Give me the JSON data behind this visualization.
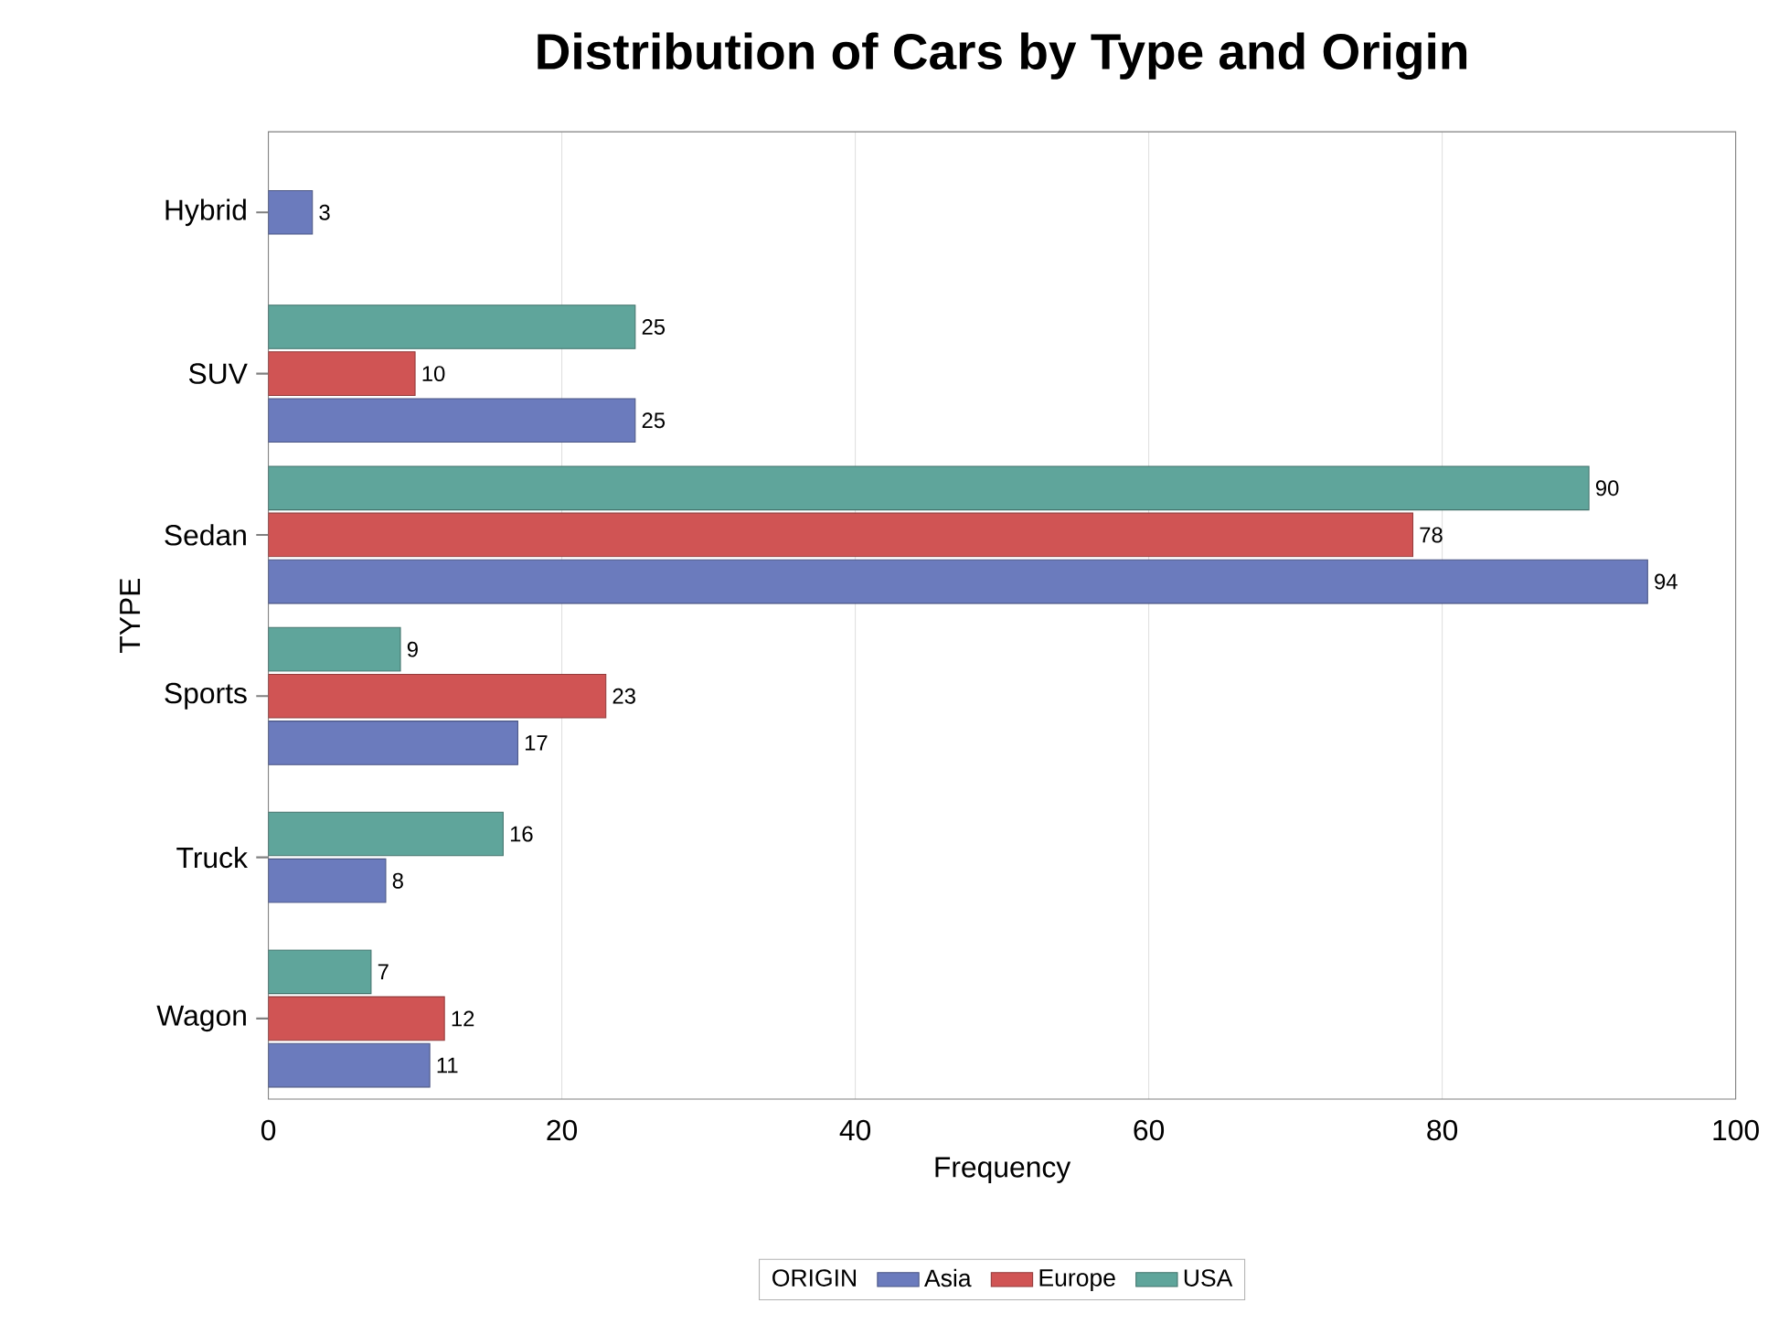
{
  "chart_data": {
    "type": "bar",
    "orientation": "horizontal",
    "title": "Distribution of Cars by Type and Origin",
    "xlabel": "Frequency",
    "ylabel": "TYPE",
    "legend_title": "ORIGIN",
    "categories": [
      "Hybrid",
      "SUV",
      "Sedan",
      "Sports",
      "Truck",
      "Wagon"
    ],
    "series": [
      {
        "name": "Asia",
        "color": "#6b7bbd",
        "values": [
          3,
          25,
          94,
          17,
          8,
          11
        ]
      },
      {
        "name": "Europe",
        "color": "#d05454",
        "values": [
          null,
          10,
          78,
          23,
          null,
          12
        ]
      },
      {
        "name": "USA",
        "color": "#5fa59b",
        "values": [
          null,
          25,
          90,
          9,
          16,
          7
        ]
      }
    ],
    "xlim": [
      0,
      100
    ],
    "xticks": [
      0,
      20,
      40,
      60,
      80,
      100
    ],
    "grid": "x",
    "legend": "bottom",
    "data_labels": true
  }
}
